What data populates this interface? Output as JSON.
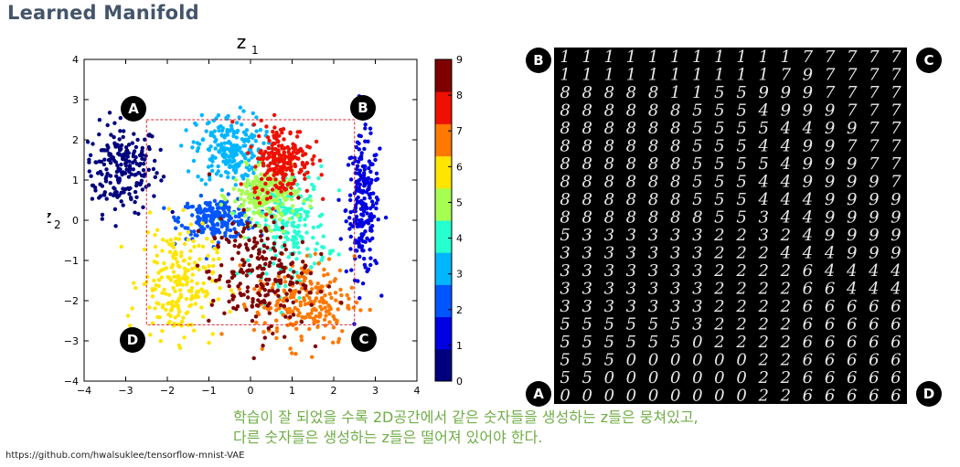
{
  "slide": {
    "title": "Learned Manifold",
    "caption_line1": "학습이 잘 되었을 수록 2D공간에서 같은 숫자들을 생성하는 z들은 뭉쳐있고,",
    "caption_line2": "다른 숫자들은 생성하는 z들은 떨어져 있어야 한다.",
    "source": "https://github.com/hwalsuklee/tensorflow-mnist-VAE"
  },
  "markers": {
    "scatter": {
      "A": "A",
      "B": "B",
      "C": "C",
      "D": "D"
    },
    "grid": {
      "B": "B",
      "C": "C",
      "A": "A",
      "D": "D"
    }
  },
  "chart_data": {
    "type": "scatter",
    "title": "",
    "xlabel": "z",
    "xlabel_sub": "1",
    "ylabel": "z",
    "ylabel_sub": "2",
    "xlim": [
      -4,
      4
    ],
    "ylim": [
      -4,
      4
    ],
    "xticks": [
      -4,
      -3,
      -2,
      -1,
      0,
      1,
      2,
      3,
      4
    ],
    "yticks": [
      -4,
      -3,
      -2,
      -1,
      0,
      1,
      2,
      3,
      4
    ],
    "grid": false,
    "colorbar": {
      "min": 0,
      "max": 9,
      "ticks": [
        0,
        1,
        2,
        3,
        4,
        5,
        6,
        7,
        8,
        9
      ],
      "colors": [
        "#00007f",
        "#0000e0",
        "#0055ff",
        "#00b6ff",
        "#26ffd0",
        "#a6ff50",
        "#ffe500",
        "#ff7800",
        "#ee1000",
        "#7f0000"
      ]
    },
    "region_box": {
      "x": [
        -2.5,
        2.5
      ],
      "y": [
        -2.6,
        2.5
      ],
      "color": "#e0202a",
      "style": "dashed"
    },
    "series": [
      {
        "label": 0,
        "center": [
          -3.1,
          1.3
        ],
        "spread": [
          0.45,
          0.55
        ]
      },
      {
        "label": 1,
        "center": [
          2.7,
          0.3
        ],
        "spread": [
          0.2,
          0.85
        ]
      },
      {
        "label": 2,
        "center": [
          -0.8,
          0.05
        ],
        "spread": [
          0.45,
          0.25
        ]
      },
      {
        "label": 3,
        "center": [
          -0.5,
          1.75
        ],
        "spread": [
          0.4,
          0.45
        ]
      },
      {
        "label": 4,
        "center": [
          0.95,
          -0.1
        ],
        "spread": [
          0.45,
          0.7
        ]
      },
      {
        "label": 5,
        "center": [
          0.35,
          0.6
        ],
        "spread": [
          0.4,
          0.35
        ]
      },
      {
        "label": 6,
        "center": [
          -1.75,
          -1.55
        ],
        "spread": [
          0.45,
          0.7
        ]
      },
      {
        "label": 7,
        "center": [
          1.3,
          -2.0
        ],
        "spread": [
          0.6,
          0.55
        ]
      },
      {
        "label": 8,
        "center": [
          0.75,
          1.5
        ],
        "spread": [
          0.35,
          0.45
        ]
      },
      {
        "label": 9,
        "center": [
          0.2,
          -1.35
        ],
        "spread": [
          0.6,
          0.7
        ]
      }
    ]
  },
  "digit_grid": {
    "rows": [
      "1111111111177777",
      "1111111111797777",
      "8888811559997777",
      "8888885554999777",
      "8888885555449977",
      "8888885554499777",
      "8888885555499977",
      "8888885554499997",
      "8888885554449999",
      "8888888553449999",
      "5333333223249999",
      "3333333222444999",
      "3333333222264444",
      "3333333222266444",
      "3333333222266666",
      "5555553222266666",
      "5555550222266666",
      "5550000002266666",
      "5500000002266666",
      "0000000002266666"
    ]
  }
}
